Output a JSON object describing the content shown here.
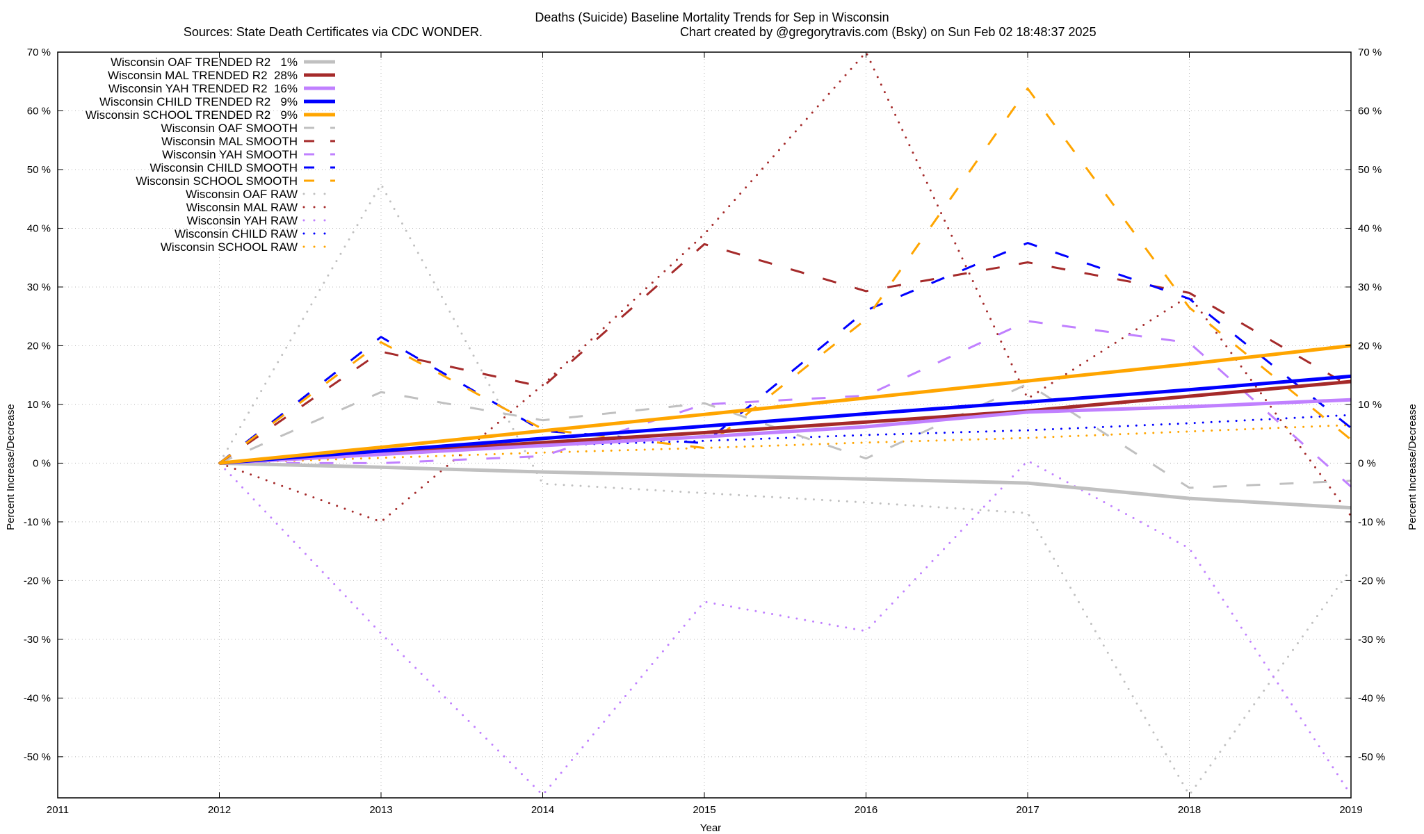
{
  "chart_data": {
    "type": "line",
    "title": "Deaths (Suicide)  Baseline Mortality Trends for Sep in Wisconsin",
    "subtitle_left": "Sources: State Death Certificates via CDC WONDER.",
    "subtitle_right": "Chart created by @gregorytravis.com (Bsky) on Sun Feb 02 18:48:37 2025",
    "xlabel": "Year",
    "ylabel": "Percent Increase/Decrease",
    "y2label": "Percent Increase/Decrease",
    "xlim": [
      2011,
      2019
    ],
    "ylim": [
      -57,
      70
    ],
    "grid": true,
    "legend_position": "top-left",
    "x_ticks": [
      "2011",
      "2012",
      "2013",
      "2014",
      "2015",
      "2016",
      "2017",
      "2018",
      "2019"
    ],
    "y_ticks": [
      "70 %",
      "60 %",
      "50 %",
      "40 %",
      "30 %",
      "20 %",
      "10 %",
      "0 %",
      "-10 %",
      "-20 %",
      "-30 %",
      "-40 %",
      "-50 %"
    ],
    "y_tick_values": [
      70,
      60,
      50,
      40,
      30,
      20,
      10,
      0,
      -10,
      -20,
      -30,
      -40,
      -50
    ],
    "x": [
      2012,
      2013,
      2014,
      2015,
      2016,
      2017,
      2018,
      2019
    ],
    "series": [
      {
        "name": "Wisconsin OAF TRENDED R2   1%",
        "color": "#c0c0c0",
        "style": "solid",
        "values": [
          0,
          -0.7,
          -1.5,
          -2.1,
          -2.7,
          -3.4,
          -6.0,
          -7.6
        ]
      },
      {
        "name": "Wisconsin MAL TRENDED R2  28%",
        "color": "#a52a2a",
        "style": "solid",
        "values": [
          0,
          1.8,
          3.5,
          5.2,
          7.0,
          8.9,
          11.4,
          13.9
        ]
      },
      {
        "name": "Wisconsin YAH TRENDED R2  16%",
        "color": "#c080ff",
        "style": "solid",
        "values": [
          0,
          1.5,
          3.0,
          4.5,
          6.2,
          8.7,
          9.6,
          10.8
        ]
      },
      {
        "name": "Wisconsin CHILD TRENDED R2   9%",
        "color": "#0000ff",
        "style": "solid",
        "values": [
          0,
          2.1,
          4.2,
          6.3,
          8.4,
          10.4,
          12.5,
          14.8
        ]
      },
      {
        "name": "Wisconsin SCHOOL TRENDED R2   9%",
        "color": "#ffa500",
        "style": "solid",
        "values": [
          0,
          2.7,
          5.5,
          8.3,
          11.1,
          14.0,
          16.9,
          20.0
        ]
      },
      {
        "name": "Wisconsin OAF SMOOTH",
        "color": "#c0c0c0",
        "style": "dash",
        "values": [
          0,
          12.1,
          7.3,
          10.2,
          0.8,
          13.5,
          -4.2,
          -3.0
        ]
      },
      {
        "name": "Wisconsin MAL SMOOTH",
        "color": "#a52a2a",
        "style": "dash",
        "values": [
          0,
          19.0,
          13.0,
          37.3,
          29.3,
          34.2,
          29.0,
          13.0
        ]
      },
      {
        "name": "Wisconsin YAH SMOOTH",
        "color": "#c080ff",
        "style": "dash",
        "values": [
          0,
          0.0,
          1.2,
          10.0,
          11.5,
          24.2,
          20.5,
          -4.0
        ]
      },
      {
        "name": "Wisconsin CHILD SMOOTH",
        "color": "#0000ff",
        "style": "dash",
        "values": [
          0,
          21.5,
          5.5,
          3.4,
          26.0,
          37.5,
          28.0,
          6.0
        ]
      },
      {
        "name": "Wisconsin SCHOOL SMOOTH",
        "color": "#ffa500",
        "style": "dash",
        "values": [
          0,
          20.6,
          5.8,
          2.6,
          24.5,
          63.8,
          26.5,
          4.0
        ]
      },
      {
        "name": "Wisconsin OAF RAW",
        "color": "#c0c0c0",
        "style": "dot",
        "values": [
          0,
          47.5,
          -3.5,
          -5.1,
          -6.7,
          -8.5,
          -56.5,
          -18.0
        ]
      },
      {
        "name": "Wisconsin MAL RAW",
        "color": "#a52a2a",
        "style": "dot",
        "values": [
          0,
          -10.0,
          13.3,
          39.0,
          70.0,
          11.0,
          28.5,
          -9.0
        ]
      },
      {
        "name": "Wisconsin YAH RAW",
        "color": "#c080ff",
        "style": "dot",
        "values": [
          0,
          -29.0,
          -56.5,
          -23.6,
          -28.6,
          0.4,
          -14.5,
          -56.5
        ]
      },
      {
        "name": "Wisconsin CHILD RAW",
        "color": "#0000ff",
        "style": "dot",
        "values": [
          0,
          1.6,
          3.0,
          3.8,
          4.8,
          5.6,
          6.8,
          8.2
        ]
      },
      {
        "name": "Wisconsin SCHOOL RAW",
        "color": "#ffa500",
        "style": "dot",
        "values": [
          0,
          0.9,
          1.8,
          2.6,
          3.5,
          4.3,
          5.4,
          6.5
        ]
      }
    ]
  }
}
